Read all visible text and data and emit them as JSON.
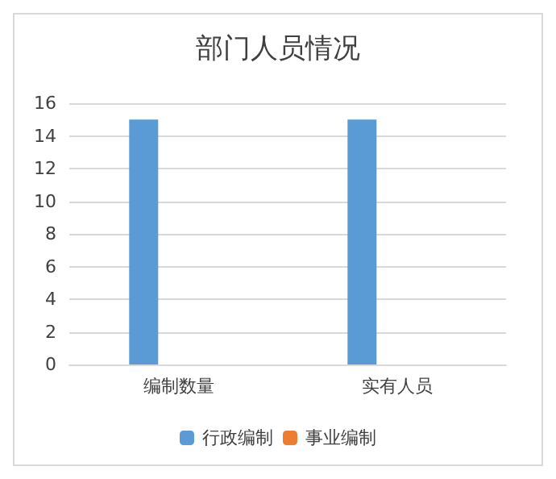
{
  "chart_data": {
    "type": "bar",
    "title": "部门人员情况",
    "categories": [
      "编制数量",
      "实有人员"
    ],
    "series": [
      {
        "name": "行政编制",
        "color": "#5b9bd5",
        "values": [
          15,
          15
        ]
      },
      {
        "name": "事业编制",
        "color": "#ed7d31",
        "values": [
          0,
          0
        ]
      }
    ],
    "ylim": [
      0,
      16
    ],
    "yticks": [
      0,
      2,
      4,
      6,
      8,
      10,
      12,
      14,
      16
    ],
    "grid": "y",
    "legend": "bottom"
  }
}
